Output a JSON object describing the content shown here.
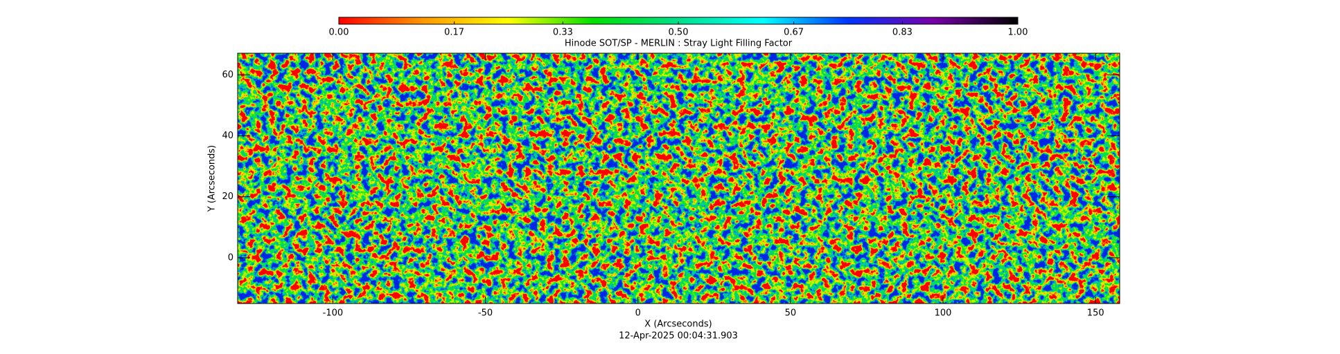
{
  "chart_data": {
    "type": "heatmap",
    "title": "Hinode SOT/SP - MERLIN : Stray Light Filling Factor",
    "x_label": "X (Arcseconds)",
    "y_label": "Y (Arcseconds)",
    "timestamp": "12-Apr-2025 00:04:31.903",
    "xlim": [
      -131.2,
      157.9
    ],
    "ylim": [
      -15,
      67.1
    ],
    "xticks": [
      -100,
      -50,
      0,
      50,
      100,
      150
    ],
    "yticks": [
      0,
      20,
      40,
      60
    ],
    "colorbar": {
      "lim": [
        0,
        1
      ],
      "ticks": [
        {
          "value": 0,
          "label": "0.00"
        },
        0.17,
        0.33,
        {
          "value": 0.5,
          "label": "0.50"
        },
        0.67,
        0.83,
        {
          "value": 1,
          "label": "1.00"
        }
      ],
      "colors": [
        "#ff0000",
        "#ff9900",
        "#ffff00",
        "#00e000",
        "#00e08a",
        "#00ffff",
        "#0033ff",
        "#7700aa",
        "#000000"
      ]
    }
  }
}
